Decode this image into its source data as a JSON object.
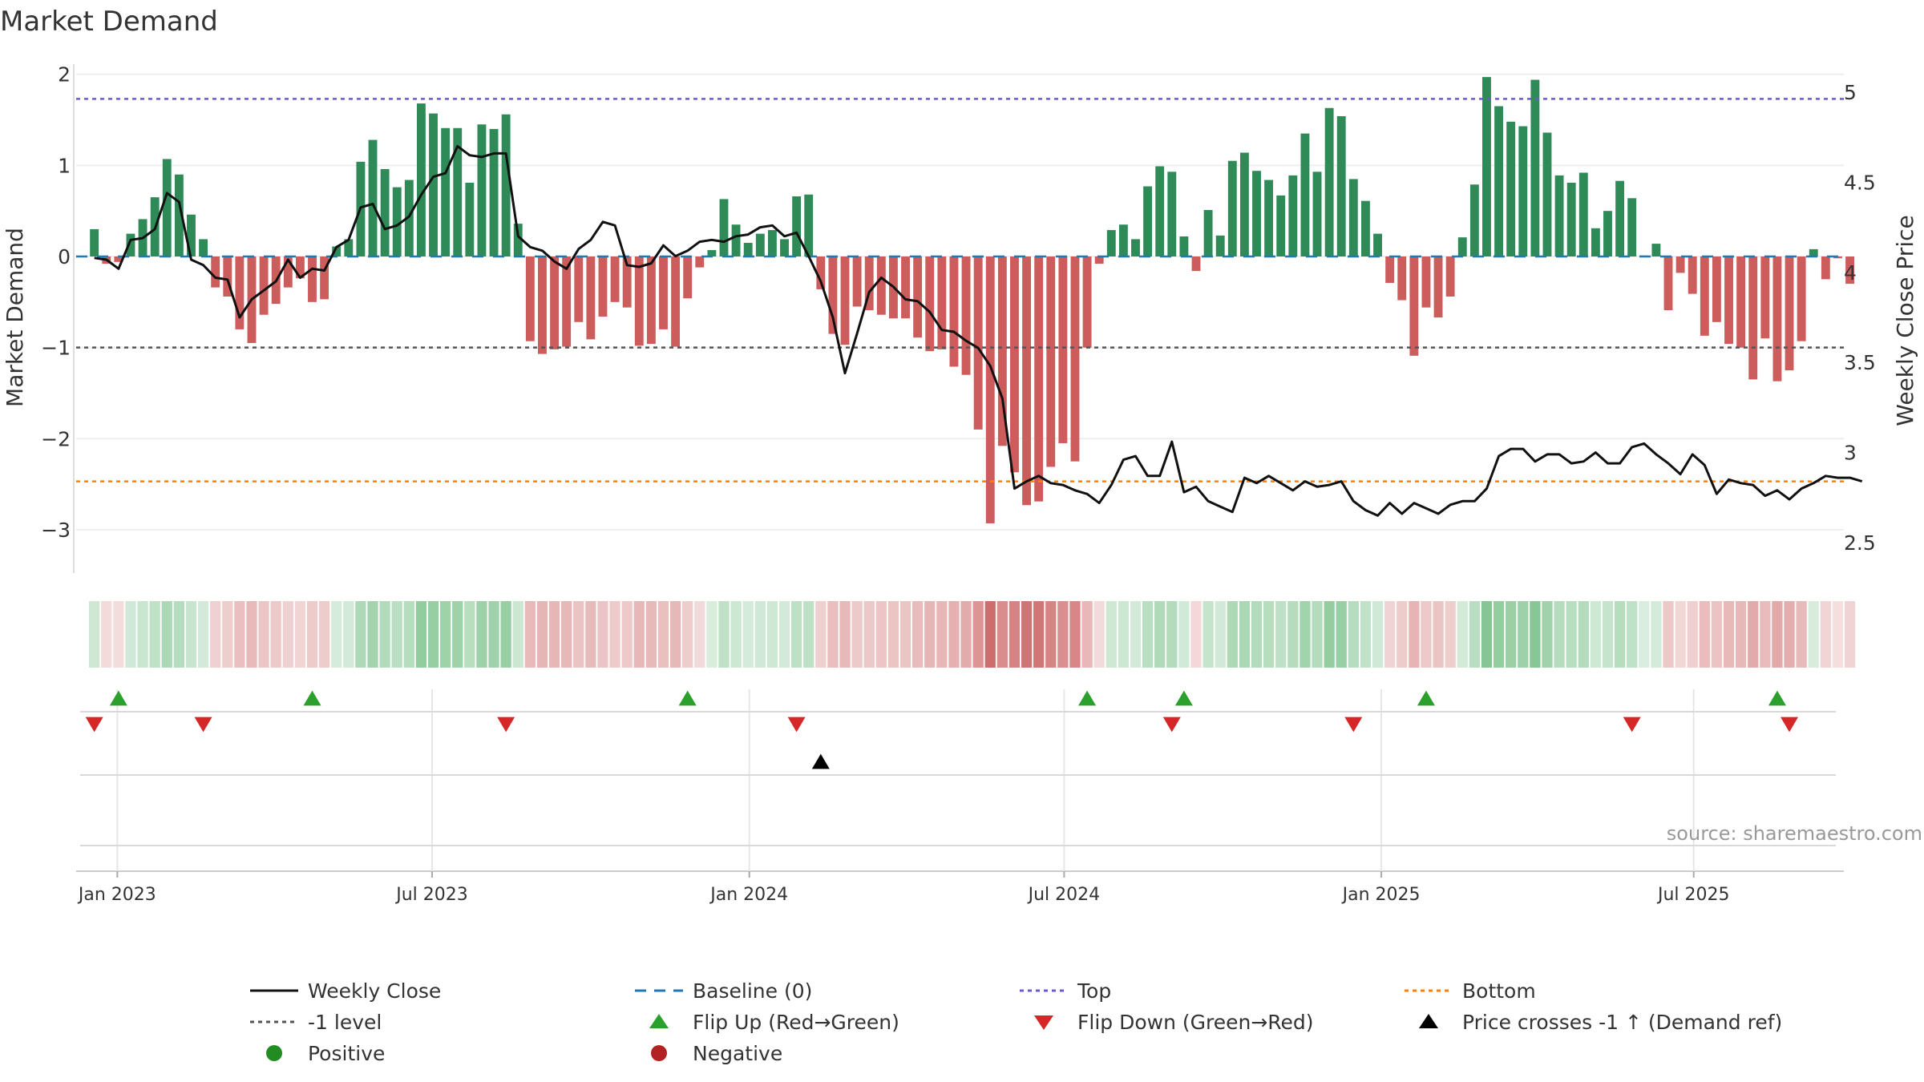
{
  "chart_data": {
    "type": "bar",
    "title": "Market Demand",
    "ylabel_left": "Market Demand",
    "ylabel_right": "Weekly Close Price",
    "source": "source: sharemaestro.com",
    "ylim_left": [
      -3.3,
      2.2
    ],
    "yticks_left": [
      2,
      1,
      0,
      -1,
      -2,
      -3
    ],
    "ytick_labels_left": [
      "2",
      "1",
      "0",
      "−1",
      "−2",
      "−3"
    ],
    "ylim_right": [
      2.42,
      5.2
    ],
    "yticks_right": [
      5,
      4.5,
      4,
      3.5,
      3,
      2.5
    ],
    "ytick_labels_right": [
      "5",
      "4.5",
      "4",
      "3.5",
      "3",
      "2.5"
    ],
    "xlim_weeks": [
      -1.5,
      144.5
    ],
    "x_ticks": [
      {
        "label": "Jan 2023",
        "week": 1.9
      },
      {
        "label": "Jul 2023",
        "week": 27.9
      },
      {
        "label": "Jan 2024",
        "week": 54.1
      },
      {
        "label": "Jul 2024",
        "week": 80.1
      },
      {
        "label": "Jan 2025",
        "week": 106.3
      },
      {
        "label": "Jul 2025",
        "week": 132.1
      }
    ],
    "reference_lines": {
      "top": 1.73,
      "minus_one": -1.0,
      "bottom": -2.47,
      "baseline": 0
    },
    "demand_values": [
      0.3,
      -0.08,
      -0.06,
      0.25,
      0.41,
      0.65,
      1.07,
      0.9,
      0.46,
      0.19,
      -0.34,
      -0.44,
      -0.8,
      -0.95,
      -0.64,
      -0.52,
      -0.34,
      -0.24,
      -0.5,
      -0.47,
      0.11,
      0.19,
      1.04,
      1.28,
      0.96,
      0.76,
      0.84,
      1.68,
      1.57,
      1.41,
      1.41,
      0.81,
      1.45,
      1.4,
      1.56,
      0.36,
      -0.93,
      -1.07,
      -1.02,
      -0.99,
      -0.72,
      -0.91,
      -0.66,
      -0.5,
      -0.56,
      -0.98,
      -0.96,
      -0.8,
      -0.99,
      -0.46,
      -0.12,
      0.07,
      0.63,
      0.35,
      0.15,
      0.25,
      0.29,
      0.19,
      0.66,
      0.68,
      -0.36,
      -0.85,
      -0.97,
      -0.55,
      -0.59,
      -0.64,
      -0.68,
      -0.68,
      -0.89,
      -1.04,
      -1.02,
      -1.21,
      -1.3,
      -1.9,
      -2.93,
      -2.08,
      -2.37,
      -2.73,
      -2.69,
      -2.31,
      -2.05,
      -2.25,
      -1.0,
      -0.08,
      0.29,
      0.35,
      0.19,
      0.77,
      0.99,
      0.93,
      0.22,
      -0.16,
      0.51,
      0.23,
      1.05,
      1.14,
      0.94,
      0.84,
      0.67,
      0.89,
      1.35,
      0.93,
      1.63,
      1.54,
      0.85,
      0.61,
      0.25,
      -0.29,
      -0.48,
      -1.09,
      -0.56,
      -0.67,
      -0.44,
      0.21,
      0.79,
      1.97,
      1.65,
      1.48,
      1.43,
      1.94,
      1.36,
      0.89,
      0.81,
      0.92,
      0.31,
      0.5,
      0.83,
      0.64,
      0.01,
      0.14,
      -0.59,
      -0.18,
      -0.41,
      -0.87,
      -0.72,
      -0.96,
      -1.0,
      -1.35,
      -0.9,
      -1.37,
      -1.25,
      -0.93,
      0.08,
      -0.25,
      -0.02,
      -0.3
    ],
    "weekly_close": [
      4.08,
      4.07,
      4.02,
      4.18,
      4.19,
      4.24,
      4.44,
      4.39,
      4.07,
      4.04,
      3.97,
      3.96,
      3.75,
      3.85,
      3.9,
      3.95,
      4.07,
      3.97,
      4.02,
      4.01,
      4.14,
      4.18,
      4.36,
      4.38,
      4.24,
      4.26,
      4.31,
      4.43,
      4.53,
      4.55,
      4.7,
      4.65,
      4.64,
      4.66,
      4.66,
      4.2,
      4.14,
      4.12,
      4.06,
      4.02,
      4.13,
      4.18,
      4.28,
      4.26,
      4.04,
      4.03,
      4.05,
      4.15,
      4.09,
      4.12,
      4.17,
      4.18,
      4.17,
      4.2,
      4.21,
      4.25,
      4.26,
      4.2,
      4.22,
      4.09,
      3.95,
      3.75,
      3.44,
      3.66,
      3.89,
      3.97,
      3.92,
      3.85,
      3.84,
      3.78,
      3.68,
      3.67,
      3.62,
      3.58,
      3.48,
      3.3,
      2.8,
      2.84,
      2.87,
      2.83,
      2.82,
      2.79,
      2.77,
      2.72,
      2.82,
      2.96,
      2.98,
      2.87,
      2.87,
      3.06,
      2.78,
      2.81,
      2.73,
      2.7,
      2.67,
      2.86,
      2.83,
      2.87,
      2.83,
      2.79,
      2.84,
      2.81,
      2.82,
      2.84,
      2.73,
      2.68,
      2.65,
      2.72,
      2.66,
      2.72,
      2.69,
      2.66,
      2.71,
      2.73,
      2.73,
      2.8,
      2.98,
      3.02,
      3.02,
      2.95,
      2.99,
      2.99,
      2.94,
      2.95,
      3.0,
      2.94,
      2.94,
      3.03,
      3.05,
      2.99,
      2.94,
      2.88,
      2.99,
      2.93,
      2.77,
      2.85,
      2.83,
      2.82,
      2.76,
      2.79,
      2.74,
      2.8,
      2.83,
      2.87,
      2.86,
      2.86,
      2.84
    ],
    "flip_up_weeks": [
      2,
      18,
      49,
      82,
      90,
      110,
      139
    ],
    "flip_down_weeks": [
      0,
      9,
      34,
      58,
      89,
      104,
      127,
      140
    ],
    "price_cross_weeks": [
      60
    ],
    "colors": {
      "positive": "#2e8b57",
      "negative": "#cd5c5c",
      "price_line": "#111111",
      "baseline": "#1f77b4",
      "top": "#6a5acd",
      "minus_one": "#555555",
      "bottom": "#ff7f0e",
      "flip_up": "#2ca02c",
      "flip_down": "#d62728",
      "price_cross": "#000000",
      "dot_positive": "#228b22",
      "dot_negative": "#b22222"
    },
    "legend": [
      {
        "label": "Weekly Close",
        "type": "line-solid",
        "color": "#111111"
      },
      {
        "label": "Baseline (0)",
        "type": "line-dash",
        "color": "#1f77b4"
      },
      {
        "label": "Top",
        "type": "line-dot",
        "color": "#6a5acd"
      },
      {
        "label": "Bottom",
        "type": "line-dot",
        "color": "#ff7f0e"
      },
      {
        "label": "-1 level",
        "type": "line-dot",
        "color": "#555555"
      },
      {
        "label": "Flip Up (Red→Green)",
        "type": "tri-up",
        "color": "#2ca02c"
      },
      {
        "label": "Flip Down (Green→Red)",
        "type": "tri-down",
        "color": "#d62728"
      },
      {
        "label": "Price crosses -1 ↑ (Demand ref)",
        "type": "tri-up",
        "color": "#000000"
      },
      {
        "label": "Positive",
        "type": "dot",
        "color": "#228b22"
      },
      {
        "label": "Negative",
        "type": "dot",
        "color": "#b22222"
      }
    ]
  }
}
